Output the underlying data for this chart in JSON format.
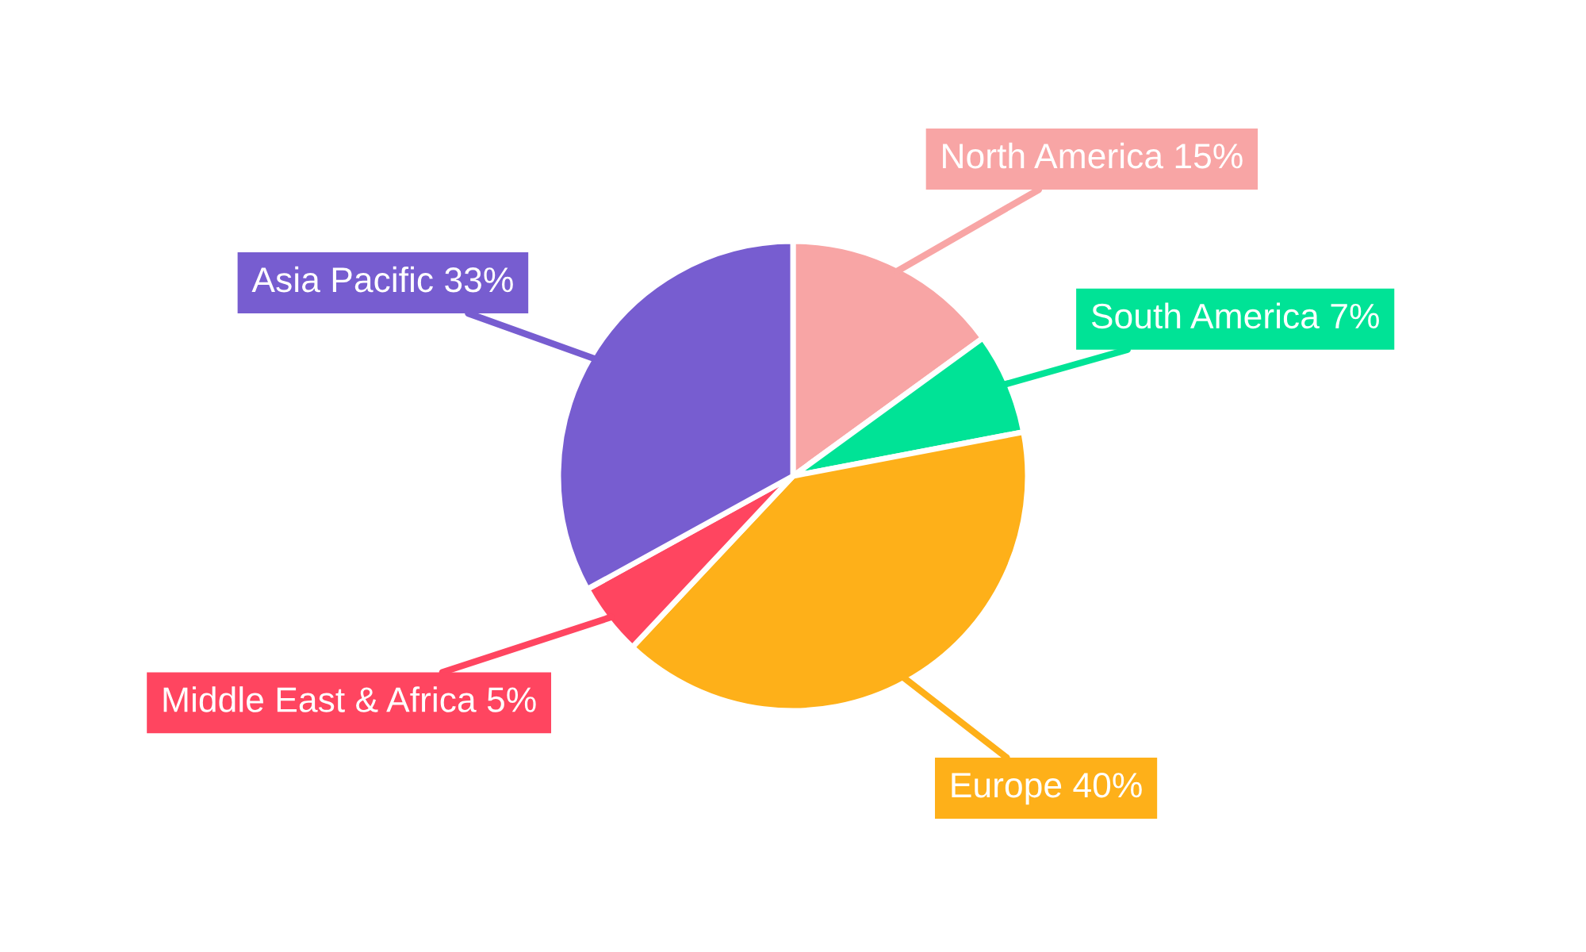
{
  "chart_data": {
    "type": "pie",
    "categories": [
      "North America",
      "South America",
      "Europe",
      "Middle East & Africa",
      "Asia Pacific"
    ],
    "values": [
      15,
      7,
      40,
      5,
      33
    ],
    "value_labels": [
      "15%",
      "7%",
      "40%",
      "5%",
      "33%"
    ],
    "colors": [
      "#f8a5a5",
      "#00e396",
      "#feb019",
      "#ff4560",
      "#775dd0"
    ],
    "legend": false
  }
}
